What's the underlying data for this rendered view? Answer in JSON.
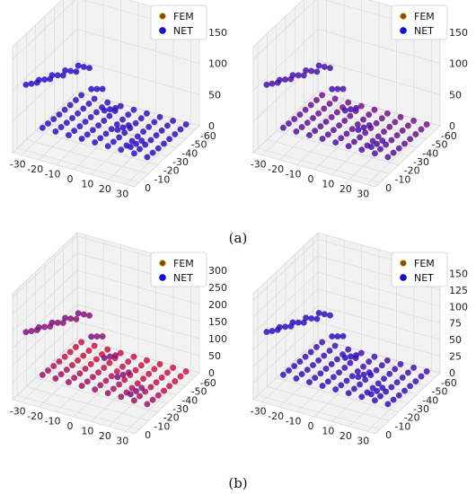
{
  "figure": {
    "captions": [
      "(a)",
      "(b)"
    ]
  },
  "colors": {
    "fem": "#8b4513",
    "net": "#1010e0",
    "pane": "#f2f2f2",
    "grid": "#d6d6d6"
  },
  "chart_data": [
    {
      "type": "scatter",
      "title": "",
      "legend_placement": "top-right",
      "series": [
        {
          "name": "FEM"
        },
        {
          "name": "NET"
        }
      ],
      "x_ticks": [
        "-30",
        "-20",
        "-10",
        "0",
        "10",
        "20",
        "30"
      ],
      "y_ticks": [
        "0",
        "-10",
        "-20",
        "-30",
        "-40",
        "-50",
        "-60"
      ],
      "z_ticks": [
        "0",
        "50",
        "100",
        "150"
      ],
      "xlim": [
        -35,
        35
      ],
      "ylim": [
        -65,
        5
      ],
      "zlim": [
        0,
        170
      ],
      "fem_overlay": 0.15,
      "profile": {
        "peak": 160,
        "wall_width": 14
      }
    },
    {
      "type": "scatter",
      "title": "",
      "legend_placement": "top-right",
      "series": [
        {
          "name": "FEM"
        },
        {
          "name": "NET"
        }
      ],
      "x_ticks": [
        "-30",
        "-20",
        "-10",
        "0",
        "10",
        "20",
        "30"
      ],
      "y_ticks": [
        "0",
        "-10",
        "-20",
        "-30",
        "-40",
        "-50",
        "-60"
      ],
      "z_ticks": [
        "0",
        "50",
        "100",
        "150"
      ],
      "xlim": [
        -35,
        35
      ],
      "ylim": [
        -65,
        5
      ],
      "zlim": [
        0,
        170
      ],
      "fem_overlay": 0.4,
      "profile": {
        "peak": 160,
        "wall_width": 14
      }
    },
    {
      "type": "scatter",
      "title": "",
      "legend_placement": "top-right",
      "series": [
        {
          "name": "FEM"
        },
        {
          "name": "NET"
        }
      ],
      "x_ticks": [
        "-30",
        "-20",
        "-10",
        "0",
        "10",
        "20",
        "30"
      ],
      "y_ticks": [
        "0",
        "-10",
        "-20",
        "-30",
        "-40",
        "-50",
        "-60"
      ],
      "z_ticks": [
        "0",
        "50",
        "100",
        "150",
        "200",
        "250",
        "300"
      ],
      "xlim": [
        -35,
        35
      ],
      "ylim": [
        -65,
        5
      ],
      "zlim": [
        0,
        310
      ],
      "fem_overlay": 0.85,
      "profile": {
        "peak": 290,
        "wall_width": 14
      }
    },
    {
      "type": "scatter",
      "title": "",
      "legend_placement": "top-right",
      "series": [
        {
          "name": "FEM"
        },
        {
          "name": "NET"
        }
      ],
      "x_ticks": [
        "-30",
        "-20",
        "-10",
        "0",
        "10",
        "20",
        "30"
      ],
      "y_ticks": [
        "0",
        "-10",
        "-20",
        "-30",
        "-40",
        "-50",
        "-60"
      ],
      "z_ticks": [
        "0",
        "25",
        "50",
        "75",
        "100",
        "125",
        "150"
      ],
      "xlim": [
        -35,
        35
      ],
      "ylim": [
        -65,
        5
      ],
      "zlim": [
        0,
        160
      ],
      "fem_overlay": 0.2,
      "profile": {
        "peak": 150,
        "wall_width": 14
      }
    }
  ]
}
